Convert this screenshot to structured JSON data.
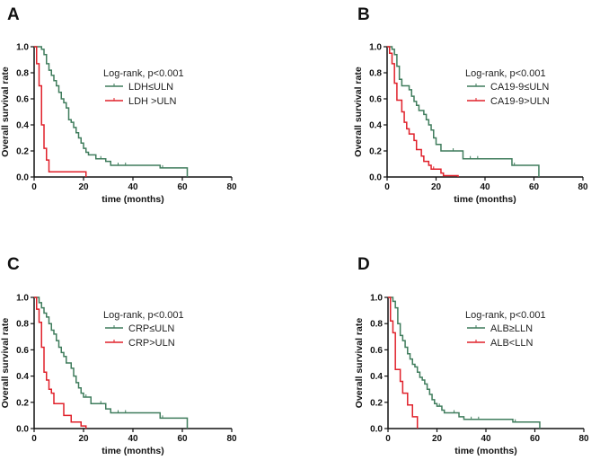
{
  "chart_data": [
    {
      "type": "line",
      "panel": "A",
      "annotation": "Log-rank, p<0.001",
      "xlabel": "time (months)",
      "ylabel": "Overall survival rate",
      "xlim": [
        0,
        80
      ],
      "ylim": [
        0,
        1.0
      ],
      "xticks": [
        "0",
        "20",
        "40",
        "60",
        "80"
      ],
      "yticks": [
        "0.0",
        "0.2",
        "0.4",
        "0.6",
        "0.8",
        "1.0"
      ],
      "series": [
        {
          "name": "LDH≤ULN",
          "color": "#3f7c5c",
          "steps": [
            [
              0,
              1
            ],
            [
              3,
              0.98
            ],
            [
              4,
              0.94
            ],
            [
              5,
              0.87
            ],
            [
              6,
              0.82
            ],
            [
              7,
              0.78
            ],
            [
              8,
              0.74
            ],
            [
              9,
              0.7
            ],
            [
              10,
              0.65
            ],
            [
              11,
              0.6
            ],
            [
              12,
              0.57
            ],
            [
              13,
              0.53
            ],
            [
              14,
              0.44
            ],
            [
              15,
              0.42
            ],
            [
              16,
              0.38
            ],
            [
              17,
              0.34
            ],
            [
              18,
              0.3
            ],
            [
              19,
              0.26
            ],
            [
              20,
              0.22
            ],
            [
              21,
              0.19
            ],
            [
              22,
              0.17
            ],
            [
              25,
              0.14
            ],
            [
              29,
              0.12
            ],
            [
              31,
              0.09
            ],
            [
              51,
              0.07
            ],
            [
              62,
              0
            ]
          ],
          "censored": [
            22,
            27,
            34,
            37,
            52
          ]
        },
        {
          "name": "LDH >ULN",
          "color": "#e0202a",
          "steps": [
            [
              0,
              1
            ],
            [
              1,
              0.87
            ],
            [
              2,
              0.7
            ],
            [
              3,
              0.4
            ],
            [
              4,
              0.22
            ],
            [
              5,
              0.13
            ],
            [
              6,
              0.04
            ],
            [
              21,
              0
            ]
          ],
          "censored": []
        }
      ]
    },
    {
      "type": "line",
      "panel": "B",
      "annotation": "Log-rank, p<0.001",
      "xlabel": "time (months)",
      "ylabel": "Overall survival rate",
      "xlim": [
        0,
        80
      ],
      "ylim": [
        0,
        1.0
      ],
      "xticks": [
        "0",
        "20",
        "40",
        "60",
        "80"
      ],
      "yticks": [
        "0.0",
        "0.2",
        "0.4",
        "0.6",
        "0.8",
        "1.0"
      ],
      "series": [
        {
          "name": "CA19-9≤ULN",
          "color": "#3f7c5c",
          "steps": [
            [
              0,
              1
            ],
            [
              2,
              0.98
            ],
            [
              3,
              0.94
            ],
            [
              4,
              0.85
            ],
            [
              5,
              0.75
            ],
            [
              6,
              0.7
            ],
            [
              9,
              0.67
            ],
            [
              10,
              0.62
            ],
            [
              11,
              0.58
            ],
            [
              12,
              0.55
            ],
            [
              13,
              0.51
            ],
            [
              15,
              0.48
            ],
            [
              16,
              0.44
            ],
            [
              17,
              0.4
            ],
            [
              18,
              0.36
            ],
            [
              19,
              0.3
            ],
            [
              20,
              0.25
            ],
            [
              22,
              0.2
            ],
            [
              31,
              0.14
            ],
            [
              51,
              0.09
            ],
            [
              62,
              0
            ]
          ],
          "censored": [
            27,
            34,
            37,
            52
          ]
        },
        {
          "name": "CA19-9>ULN",
          "color": "#e0202a",
          "steps": [
            [
              0,
              1
            ],
            [
              1,
              0.95
            ],
            [
              2,
              0.87
            ],
            [
              3,
              0.72
            ],
            [
              4,
              0.59
            ],
            [
              6,
              0.5
            ],
            [
              7,
              0.42
            ],
            [
              8,
              0.37
            ],
            [
              9,
              0.33
            ],
            [
              11,
              0.28
            ],
            [
              12,
              0.21
            ],
            [
              14,
              0.16
            ],
            [
              15,
              0.12
            ],
            [
              17,
              0.09
            ],
            [
              18,
              0.06
            ],
            [
              22,
              0.03
            ],
            [
              23,
              0.01
            ],
            [
              29,
              0
            ]
          ],
          "censored": [
            19
          ]
        }
      ]
    },
    {
      "type": "line",
      "panel": "C",
      "annotation": "Log-rank, p<0.001",
      "xlabel": "time (months)",
      "ylabel": "Overall survival rate",
      "xlim": [
        0,
        80
      ],
      "ylim": [
        0,
        1.0
      ],
      "xticks": [
        "0",
        "20",
        "40",
        "60",
        "80"
      ],
      "yticks": [
        "0.0",
        "0.2",
        "0.4",
        "0.6",
        "0.8",
        "1.0"
      ],
      "series": [
        {
          "name": "CRP≤ULN",
          "color": "#3f7c5c",
          "steps": [
            [
              0,
              1
            ],
            [
              2,
              0.96
            ],
            [
              3,
              0.92
            ],
            [
              4,
              0.88
            ],
            [
              5,
              0.85
            ],
            [
              6,
              0.8
            ],
            [
              7,
              0.75
            ],
            [
              8,
              0.72
            ],
            [
              9,
              0.67
            ],
            [
              10,
              0.62
            ],
            [
              11,
              0.58
            ],
            [
              12,
              0.55
            ],
            [
              13,
              0.5
            ],
            [
              15,
              0.46
            ],
            [
              16,
              0.4
            ],
            [
              17,
              0.35
            ],
            [
              18,
              0.31
            ],
            [
              19,
              0.27
            ],
            [
              20,
              0.24
            ],
            [
              23,
              0.19
            ],
            [
              29,
              0.15
            ],
            [
              31,
              0.12
            ],
            [
              51,
              0.08
            ],
            [
              62,
              0
            ]
          ],
          "censored": [
            21,
            27,
            34,
            37,
            52
          ]
        },
        {
          "name": "CRP>ULN",
          "color": "#e0202a",
          "steps": [
            [
              0,
              1
            ],
            [
              1,
              0.91
            ],
            [
              2,
              0.81
            ],
            [
              3,
              0.62
            ],
            [
              4,
              0.43
            ],
            [
              5,
              0.37
            ],
            [
              6,
              0.3
            ],
            [
              7,
              0.27
            ],
            [
              8,
              0.19
            ],
            [
              12,
              0.1
            ],
            [
              15,
              0.05
            ],
            [
              19,
              0.02
            ],
            [
              21,
              0
            ]
          ],
          "censored": []
        }
      ]
    },
    {
      "type": "line",
      "panel": "D",
      "annotation": "Log-rank, p<0.001",
      "xlabel": "time (months)",
      "ylabel": "Overall survival rate",
      "xlim": [
        0,
        80
      ],
      "ylim": [
        0,
        1.0
      ],
      "xticks": [
        "0",
        "20",
        "40",
        "60",
        "80"
      ],
      "yticks": [
        "0.0",
        "0.2",
        "0.4",
        "0.6",
        "0.8",
        "1.0"
      ],
      "series": [
        {
          "name": "ALB≥LLN",
          "color": "#3f7c5c",
          "steps": [
            [
              0,
              1
            ],
            [
              2,
              0.97
            ],
            [
              3,
              0.92
            ],
            [
              4,
              0.8
            ],
            [
              5,
              0.71
            ],
            [
              6,
              0.67
            ],
            [
              7,
              0.62
            ],
            [
              8,
              0.57
            ],
            [
              9,
              0.53
            ],
            [
              10,
              0.49
            ],
            [
              11,
              0.47
            ],
            [
              12,
              0.43
            ],
            [
              13,
              0.39
            ],
            [
              14,
              0.37
            ],
            [
              15,
              0.34
            ],
            [
              16,
              0.3
            ],
            [
              17,
              0.26
            ],
            [
              18,
              0.22
            ],
            [
              19,
              0.19
            ],
            [
              20,
              0.17
            ],
            [
              22,
              0.14
            ],
            [
              23,
              0.12
            ],
            [
              29,
              0.09
            ],
            [
              31,
              0.07
            ],
            [
              51,
              0.05
            ],
            [
              62,
              0
            ]
          ],
          "censored": [
            21,
            27,
            34,
            37,
            52
          ]
        },
        {
          "name": "ALB<LLN",
          "color": "#e0202a",
          "steps": [
            [
              0,
              1
            ],
            [
              1,
              0.82
            ],
            [
              2,
              0.73
            ],
            [
              3,
              0.45
            ],
            [
              5,
              0.36
            ],
            [
              6,
              0.27
            ],
            [
              8,
              0.18
            ],
            [
              10,
              0.09
            ],
            [
              12,
              0
            ]
          ],
          "censored": []
        }
      ]
    }
  ]
}
